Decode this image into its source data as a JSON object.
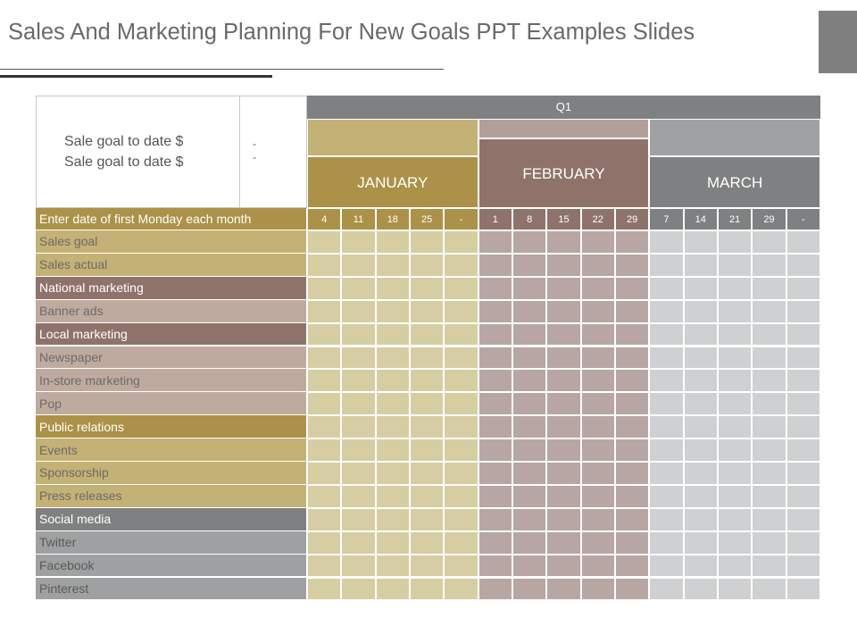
{
  "slide": {
    "title": "Sales And Marketing Planning For New Goals PPT Examples Slides"
  },
  "summary": {
    "goal_line_1": "Sale goal to date   $",
    "goal_line_2": "Sale goal to date   $",
    "dash_1": "-",
    "dash_2": "-"
  },
  "quarter": {
    "label": "Q1"
  },
  "months": [
    {
      "name": "JANUARY",
      "color": "#ab9248",
      "band": "#c4b175",
      "cell": "#d6cea2"
    },
    {
      "name": "FEBRUARY",
      "color": "#8f736b",
      "band": "#b29f9a",
      "cell": "#b7a6a2"
    },
    {
      "name": "MARCH",
      "color": "#7f8081",
      "band": "#a0a1a2",
      "cell": "#cfd0d1"
    }
  ],
  "date_row": {
    "label": "Enter date of first Monday each month",
    "dates": [
      "4",
      "11",
      "18",
      "25",
      "-",
      "1",
      "8",
      "15",
      "22",
      "29",
      "7",
      "14",
      "21",
      "29",
      "-"
    ]
  },
  "rows": [
    {
      "label": "Sales goal",
      "bg": "#c4b175",
      "fg": "#6b6b6b"
    },
    {
      "label": "Sales actual",
      "bg": "#c4b175",
      "fg": "#6b6b6b"
    },
    {
      "label": "National marketing",
      "bg": "#8f736b",
      "fg": "#ffffff"
    },
    {
      "label": "Banner ads",
      "bg": "#bfaa9f",
      "fg": "#6b6b6b"
    },
    {
      "label": "Local marketing",
      "bg": "#8f736b",
      "fg": "#ffffff"
    },
    {
      "label": "Newspaper",
      "bg": "#bfaa9f",
      "fg": "#6b6b6b"
    },
    {
      "label": "In-store  marketing",
      "bg": "#bfaa9f",
      "fg": "#6b6b6b"
    },
    {
      "label": "Pop",
      "bg": "#bfaa9f",
      "fg": "#6b6b6b"
    },
    {
      "label": "Public relations",
      "bg": "#ab9248",
      "fg": "#ffffff"
    },
    {
      "label": "Events",
      "bg": "#c4b175",
      "fg": "#6b6b6b"
    },
    {
      "label": "Sponsorship",
      "bg": "#c4b175",
      "fg": "#6b6b6b"
    },
    {
      "label": "Press releases",
      "bg": "#c4b175",
      "fg": "#6b6b6b"
    },
    {
      "label": "Social media",
      "bg": "#7f8081",
      "fg": "#ffffff"
    },
    {
      "label": "Twitter",
      "bg": "#9fa0a1",
      "fg": "#5a5a5a"
    },
    {
      "label": "Facebook",
      "bg": "#9fa0a1",
      "fg": "#5a5a5a"
    },
    {
      "label": "Pinterest",
      "bg": "#9fa0a1",
      "fg": "#5a5a5a"
    }
  ]
}
